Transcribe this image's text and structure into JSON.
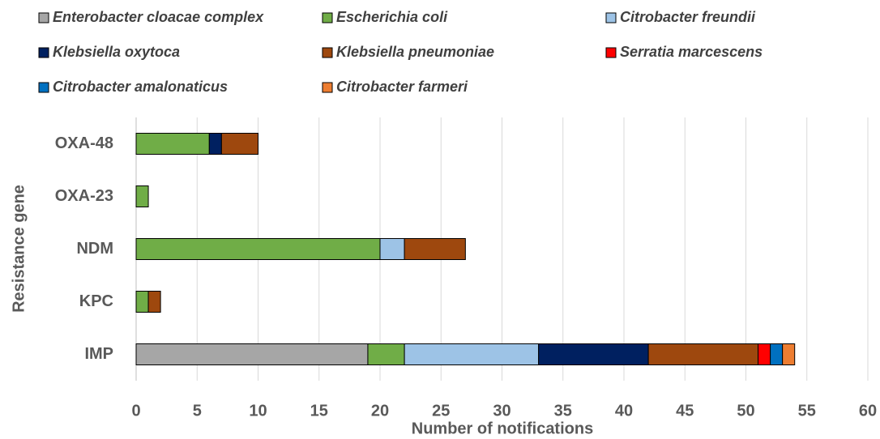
{
  "chart_data": {
    "type": "stacked-barh",
    "x_label": "Number of notifications",
    "y_label": "Resistance gene",
    "categories": [
      "OXA-48",
      "OXA-23",
      "NDM",
      "KPC",
      "IMP"
    ],
    "series": [
      {
        "name": "Enterobacter cloacae complex",
        "color": "#a6a6a6",
        "values": [
          0,
          0,
          0,
          0,
          19
        ]
      },
      {
        "name": "Escherichia coli",
        "color": "#70ad47",
        "values": [
          6,
          1,
          20,
          1,
          3
        ]
      },
      {
        "name": "Citrobacter freundii",
        "color": "#9dc3e6",
        "values": [
          0,
          0,
          2,
          0,
          11
        ]
      },
      {
        "name": "Klebsiella oxytoca",
        "color": "#002060",
        "values": [
          1,
          0,
          0,
          0,
          9
        ]
      },
      {
        "name": "Klebsiella pneumoniae",
        "color": "#9e480e",
        "values": [
          3,
          0,
          5,
          1,
          9
        ]
      },
      {
        "name": "Serratia marcescens",
        "color": "#ff0000",
        "values": [
          0,
          0,
          0,
          0,
          1
        ]
      },
      {
        "name": "Citrobacter amalonaticus",
        "color": "#0070c0",
        "values": [
          0,
          0,
          0,
          0,
          1
        ]
      },
      {
        "name": "Citrobacter farmeri",
        "color": "#ed7d31",
        "values": [
          0,
          0,
          0,
          0,
          1
        ]
      }
    ],
    "xlim": [
      0,
      60
    ],
    "xticks": [
      0,
      5,
      10,
      15,
      20,
      25,
      30,
      35,
      40,
      45,
      50,
      55,
      60
    ],
    "grid": true,
    "legend": "top"
  }
}
